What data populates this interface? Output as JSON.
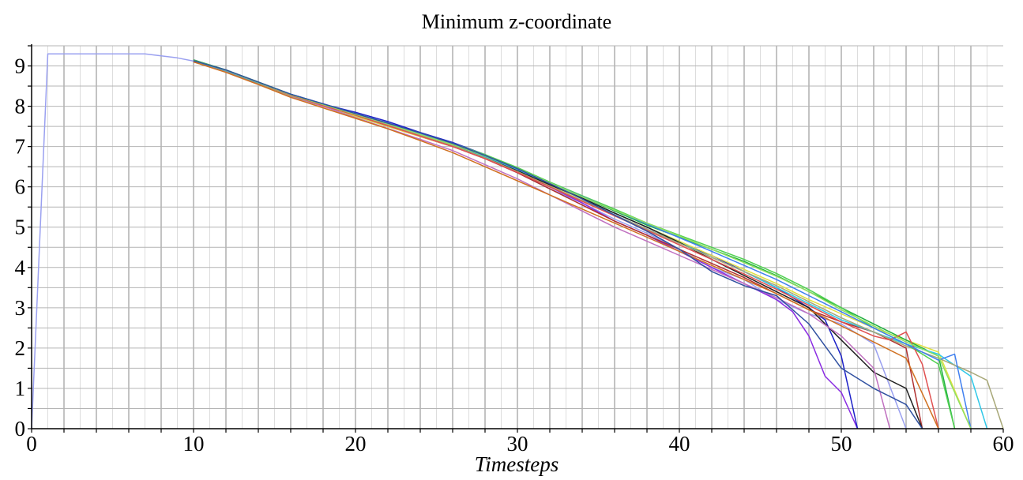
{
  "chart_data": {
    "type": "line",
    "title": "Minimum z-coordinate",
    "xlabel": "Timesteps",
    "ylabel": "",
    "xlim": [
      0,
      60
    ],
    "ylim": [
      0,
      9.5
    ],
    "xticks": [
      0,
      10,
      20,
      30,
      40,
      50,
      60
    ],
    "yticks": [
      0,
      1,
      2,
      3,
      4,
      5,
      6,
      7,
      8,
      9
    ],
    "x_major_grid_step": 2,
    "x_minor_grid_step": 1,
    "y_major_grid_step": 0.5,
    "grid": true,
    "legend": "none",
    "colors": {
      "major_grid": "#b4b4b4",
      "minor_grid": "#dddddd",
      "axis": "#000000"
    },
    "series": [
      {
        "color": "#9aa0f0",
        "x": [
          0,
          1,
          2,
          3,
          4,
          5,
          6,
          7,
          8,
          9,
          10,
          12,
          14,
          16,
          18,
          20,
          22,
          24,
          26,
          28,
          30,
          32,
          34,
          36,
          38,
          40,
          42,
          44,
          46,
          48,
          50,
          52,
          54
        ],
        "y": [
          0,
          9.3,
          9.3,
          9.3,
          9.3,
          9.3,
          9.3,
          9.3,
          9.25,
          9.2,
          9.12,
          8.85,
          8.55,
          8.25,
          8.0,
          7.78,
          7.55,
          7.25,
          7.0,
          6.7,
          6.35,
          5.95,
          5.6,
          5.2,
          4.85,
          4.45,
          4.0,
          3.7,
          3.2,
          2.85,
          2.6,
          2.1,
          0
        ]
      },
      {
        "color": "#8a2be2",
        "x": [
          10,
          12,
          14,
          16,
          18,
          20,
          22,
          24,
          26,
          28,
          30,
          32,
          34,
          36,
          38,
          40,
          42,
          44,
          46,
          47,
          48,
          49,
          50,
          51
        ],
        "y": [
          9.15,
          8.9,
          8.6,
          8.3,
          8.05,
          7.8,
          7.55,
          7.3,
          7.05,
          6.75,
          6.4,
          6.0,
          5.6,
          5.15,
          4.8,
          4.4,
          4.0,
          3.6,
          3.2,
          2.9,
          2.3,
          1.3,
          0.9,
          0
        ]
      },
      {
        "color": "#1e22c8",
        "x": [
          10,
          12,
          14,
          16,
          18,
          20,
          22,
          24,
          26,
          28,
          30,
          32,
          34,
          36,
          38,
          40,
          42,
          44,
          46,
          48,
          49,
          50,
          51
        ],
        "y": [
          9.12,
          8.88,
          8.58,
          8.3,
          8.05,
          7.85,
          7.62,
          7.35,
          7.1,
          6.8,
          6.45,
          6.1,
          5.7,
          5.3,
          4.95,
          4.6,
          4.3,
          3.9,
          3.5,
          3.0,
          2.7,
          1.8,
          0
        ]
      },
      {
        "color": "#b03030",
        "x": [
          10,
          12,
          14,
          16,
          18,
          20,
          22,
          24,
          26,
          28,
          30,
          32,
          34,
          36,
          38,
          40,
          42,
          44,
          46,
          48,
          50,
          52,
          54,
          55
        ],
        "y": [
          9.1,
          8.86,
          8.56,
          8.25,
          8.0,
          7.75,
          7.5,
          7.25,
          7.0,
          6.7,
          6.35,
          5.95,
          5.55,
          5.15,
          4.8,
          4.45,
          4.1,
          3.75,
          3.35,
          2.95,
          2.65,
          2.4,
          2.0,
          0
        ]
      },
      {
        "color": "#e0e040",
        "x": [
          10,
          12,
          14,
          16,
          18,
          20,
          22,
          24,
          26,
          28,
          30,
          32,
          34,
          36,
          38,
          40,
          42,
          44,
          46,
          48,
          50,
          52,
          54,
          56,
          58
        ],
        "y": [
          9.1,
          8.85,
          8.55,
          8.25,
          8.0,
          7.75,
          7.5,
          7.25,
          7.0,
          6.72,
          6.4,
          6.05,
          5.7,
          5.35,
          5.0,
          4.65,
          4.3,
          3.95,
          3.6,
          3.2,
          2.85,
          2.5,
          2.2,
          1.9,
          0
        ]
      },
      {
        "color": "#20b040",
        "x": [
          10,
          12,
          14,
          16,
          18,
          20,
          22,
          24,
          26,
          28,
          30,
          32,
          34,
          36,
          38,
          40,
          42,
          44,
          46,
          48,
          50,
          52,
          54,
          56,
          57
        ],
        "y": [
          9.15,
          8.9,
          8.6,
          8.3,
          8.05,
          7.8,
          7.55,
          7.3,
          7.05,
          6.75,
          6.45,
          6.1,
          5.75,
          5.4,
          5.05,
          4.75,
          4.45,
          4.15,
          3.8,
          3.4,
          3.0,
          2.6,
          2.2,
          1.8,
          0
        ]
      },
      {
        "color": "#30c8e8",
        "x": [
          10,
          12,
          14,
          16,
          18,
          20,
          22,
          24,
          26,
          28,
          30,
          32,
          34,
          36,
          38,
          40,
          42,
          44,
          46,
          48,
          50,
          52,
          54,
          56,
          58,
          59
        ],
        "y": [
          9.12,
          8.88,
          8.58,
          8.28,
          8.04,
          7.8,
          7.56,
          7.3,
          7.05,
          6.75,
          6.42,
          6.08,
          5.72,
          5.35,
          5.0,
          4.62,
          4.25,
          3.9,
          3.5,
          3.1,
          2.7,
          2.4,
          2.1,
          1.85,
          1.3,
          0
        ]
      },
      {
        "color": "#202020",
        "x": [
          10,
          12,
          14,
          16,
          18,
          20,
          22,
          24,
          26,
          28,
          30,
          32,
          34,
          36,
          38,
          40,
          42,
          44,
          46,
          48,
          50,
          52,
          54,
          55
        ],
        "y": [
          9.12,
          8.88,
          8.58,
          8.28,
          8.02,
          7.78,
          7.52,
          7.28,
          7.02,
          6.72,
          6.4,
          6.05,
          5.72,
          5.35,
          5.0,
          4.62,
          4.2,
          3.8,
          3.4,
          3.0,
          2.2,
          1.4,
          1.0,
          0
        ]
      },
      {
        "color": "#c070c0",
        "x": [
          10,
          12,
          14,
          16,
          18,
          20,
          22,
          24,
          26,
          28,
          30,
          32,
          34,
          36,
          38,
          40,
          42,
          44,
          46,
          48,
          50,
          52,
          53
        ],
        "y": [
          9.1,
          8.85,
          8.55,
          8.25,
          8.0,
          7.72,
          7.45,
          7.18,
          6.9,
          6.55,
          6.2,
          5.8,
          5.4,
          5.0,
          4.65,
          4.3,
          3.95,
          3.6,
          3.25,
          2.85,
          2.3,
          1.5,
          0
        ]
      },
      {
        "color": "#a8a878",
        "x": [
          10,
          12,
          14,
          16,
          18,
          20,
          22,
          24,
          26,
          28,
          30,
          32,
          34,
          36,
          38,
          40,
          42,
          44,
          46,
          48,
          50,
          52,
          54,
          56,
          58,
          59,
          60
        ],
        "y": [
          9.1,
          8.86,
          8.56,
          8.26,
          8.02,
          7.78,
          7.54,
          7.28,
          7.02,
          6.72,
          6.38,
          6.02,
          5.66,
          5.3,
          4.95,
          4.6,
          4.25,
          3.9,
          3.55,
          3.15,
          2.75,
          2.4,
          2.05,
          1.75,
          1.4,
          1.2,
          0
        ]
      },
      {
        "color": "#50d050",
        "x": [
          10,
          12,
          14,
          16,
          18,
          20,
          22,
          24,
          26,
          28,
          30,
          32,
          34,
          36,
          38,
          40,
          42,
          44,
          46,
          48,
          50,
          52,
          54,
          56,
          57
        ],
        "y": [
          9.14,
          8.9,
          8.6,
          8.3,
          8.05,
          7.82,
          7.58,
          7.32,
          7.08,
          6.8,
          6.48,
          6.12,
          5.78,
          5.45,
          5.1,
          4.8,
          4.5,
          4.2,
          3.85,
          3.45,
          3.0,
          2.5,
          2.1,
          1.6,
          0
        ]
      },
      {
        "color": "#e05050",
        "x": [
          10,
          12,
          14,
          16,
          18,
          20,
          22,
          24,
          26,
          28,
          30,
          32,
          34,
          36,
          38,
          40,
          42,
          44,
          46,
          48,
          50,
          52,
          53,
          54,
          55,
          56
        ],
        "y": [
          9.12,
          8.88,
          8.58,
          8.28,
          8.02,
          7.78,
          7.52,
          7.26,
          7.0,
          6.7,
          6.36,
          6.0,
          5.64,
          5.28,
          4.92,
          4.56,
          4.2,
          3.84,
          3.46,
          3.06,
          2.65,
          2.3,
          2.2,
          2.4,
          1.6,
          0
        ]
      },
      {
        "color": "#4080f0",
        "x": [
          10,
          12,
          14,
          16,
          18,
          20,
          22,
          24,
          26,
          28,
          30,
          32,
          34,
          36,
          38,
          40,
          42,
          44,
          46,
          48,
          50,
          52,
          54,
          56,
          57,
          58
        ],
        "y": [
          9.12,
          8.88,
          8.58,
          8.3,
          8.06,
          7.82,
          7.58,
          7.32,
          7.08,
          6.78,
          6.44,
          6.1,
          5.76,
          5.42,
          5.08,
          4.74,
          4.4,
          4.05,
          3.7,
          3.3,
          2.9,
          2.5,
          2.1,
          1.7,
          1.85,
          0
        ]
      },
      {
        "color": "#90e060",
        "x": [
          10,
          12,
          14,
          16,
          18,
          20,
          22,
          24,
          26,
          28,
          30,
          32,
          34,
          36,
          38,
          40,
          42,
          44,
          46,
          48,
          50,
          52,
          54,
          56,
          58
        ],
        "y": [
          9.13,
          8.89,
          8.59,
          8.29,
          8.04,
          7.8,
          7.56,
          7.3,
          7.05,
          6.77,
          6.45,
          6.1,
          5.75,
          5.42,
          5.1,
          4.78,
          4.45,
          4.12,
          3.78,
          3.4,
          2.95,
          2.55,
          2.15,
          1.8,
          0
        ]
      },
      {
        "color": "#d07020",
        "x": [
          10,
          12,
          14,
          16,
          18,
          20,
          22,
          24,
          26,
          28,
          30,
          32,
          34,
          36,
          38,
          40,
          42,
          44,
          46,
          48,
          50,
          52,
          54,
          56
        ],
        "y": [
          9.1,
          8.84,
          8.54,
          8.22,
          7.96,
          7.7,
          7.44,
          7.15,
          6.85,
          6.5,
          6.15,
          5.8,
          5.45,
          5.1,
          4.75,
          4.4,
          4.05,
          3.7,
          3.35,
          2.95,
          2.55,
          2.15,
          1.75,
          0
        ]
      },
      {
        "color": "#3050a0",
        "x": [
          10,
          12,
          14,
          16,
          18,
          20,
          22,
          24,
          26,
          28,
          30,
          32,
          34,
          36,
          38,
          40,
          42,
          44,
          46,
          48,
          50,
          52,
          54,
          55
        ],
        "y": [
          9.13,
          8.9,
          8.6,
          8.3,
          8.06,
          7.82,
          7.58,
          7.34,
          7.08,
          6.78,
          6.45,
          6.08,
          5.7,
          5.3,
          4.9,
          4.45,
          3.9,
          3.55,
          3.3,
          2.6,
          1.5,
          1.0,
          0.6,
          0
        ]
      }
    ]
  }
}
